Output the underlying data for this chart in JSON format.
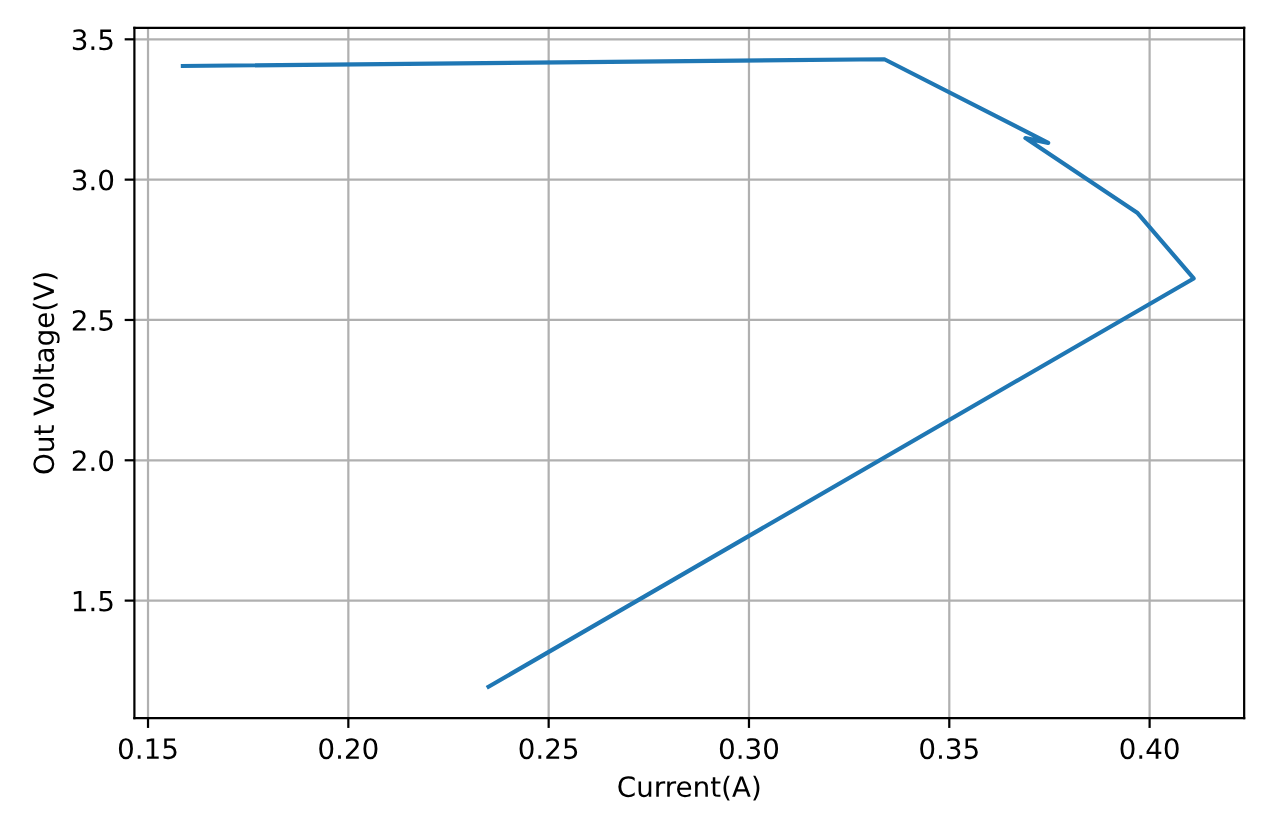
{
  "chart_data": {
    "type": "line",
    "xlabel": "Current(A)",
    "ylabel": "Out Voltage(V)",
    "x": [
      0.235,
      0.411,
      0.397,
      0.369,
      0.3747,
      0.3338,
      0.1587
    ],
    "series": [
      {
        "color": "#1f77b4",
        "values": [
          1.193,
          2.648,
          2.881,
          3.148,
          3.131,
          3.429,
          3.405
        ]
      }
    ],
    "xlim": [
      0.1466,
      0.4236
    ],
    "ylim": [
      1.081,
      3.541
    ],
    "xticks": [
      {
        "value": 0.15,
        "label": "0.15"
      },
      {
        "value": 0.2,
        "label": "0.20"
      },
      {
        "value": 0.25,
        "label": "0.25"
      },
      {
        "value": 0.3,
        "label": "0.30"
      },
      {
        "value": 0.35,
        "label": "0.35"
      },
      {
        "value": 0.4,
        "label": "0.40"
      }
    ],
    "yticks": [
      {
        "value": 1.5,
        "label": "1.5"
      },
      {
        "value": 2.0,
        "label": "2.0"
      },
      {
        "value": 2.5,
        "label": "2.5"
      },
      {
        "value": 3.0,
        "label": "3.0"
      },
      {
        "value": 3.5,
        "label": "3.5"
      }
    ],
    "grid": true
  }
}
